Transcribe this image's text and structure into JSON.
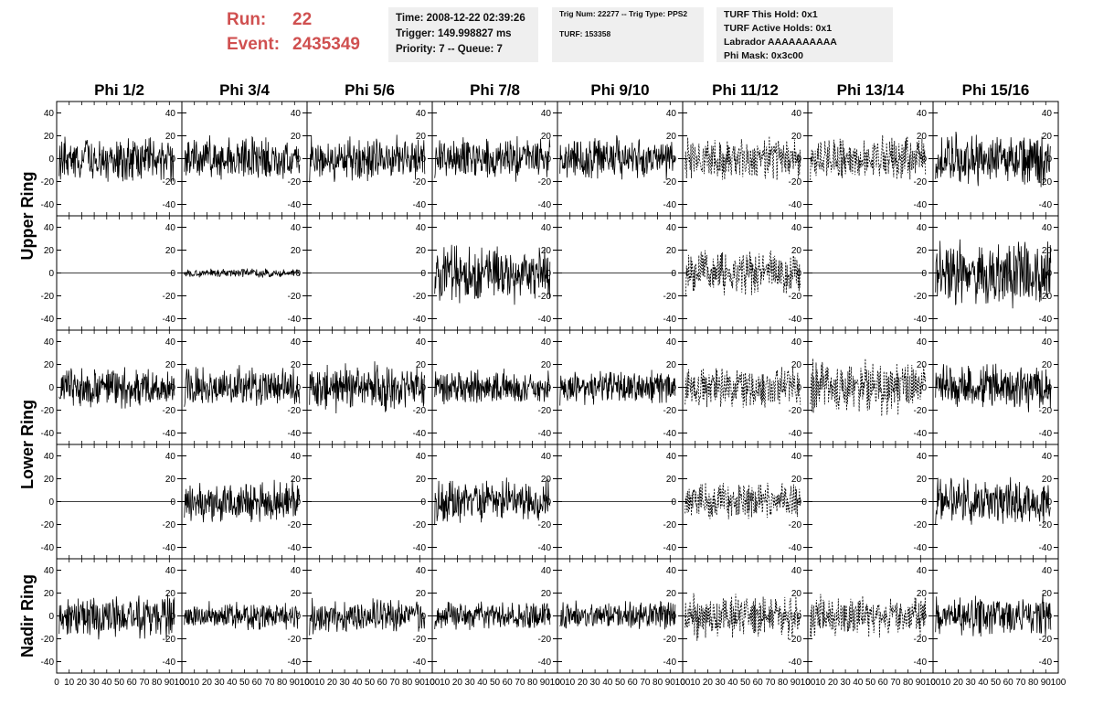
{
  "header": {
    "run_label": "Run:",
    "run_value": "22",
    "event_label": "Event:",
    "event_value": "2435349"
  },
  "info_time": {
    "time": "Time: 2008-12-22 02:39:26",
    "trigger": "Trigger: 149.998827 ms",
    "priority": "Priority: 7 -- Queue: 7"
  },
  "info_trig": {
    "trig": "Trig Num: 22277 -- Trig Type: PPS2",
    "turf": "TURF: 153358"
  },
  "info_turf": {
    "this_hold": "TURF This Hold: 0x1",
    "active_holds": "TURF Active Holds: 0x1",
    "labrador": "Labrador AAAAAAAAAA",
    "phi_mask": "Phi Mask: 0x3c00"
  },
  "chart_data": {
    "type": "line",
    "title": "",
    "columns": [
      "Phi 1/2",
      "Phi 3/4",
      "Phi 5/6",
      "Phi 7/8",
      "Phi 9/10",
      "Phi 11/12",
      "Phi 13/14",
      "Phi 15/16"
    ],
    "row_labels": [
      "Upper Ring",
      "Lower Ring",
      "Nadir Ring"
    ],
    "x_range": [
      0,
      100
    ],
    "x_ticks": [
      0,
      10,
      20,
      30,
      40,
      50,
      60,
      70,
      80,
      90,
      100
    ],
    "y_range": [
      -50,
      50
    ],
    "y_ticks": [
      -40,
      -20,
      0,
      20,
      40
    ],
    "grid": false,
    "masked_style": "dashed",
    "rows": [
      {
        "amplitudes": [
          15,
          15,
          15,
          15,
          15,
          15,
          15,
          18
        ],
        "masked": [
          0,
          0,
          0,
          0,
          0,
          1,
          1,
          0
        ]
      },
      {
        "amplitudes": [
          0,
          3,
          0,
          20,
          0,
          15,
          0,
          22
        ],
        "masked": [
          0,
          0,
          0,
          0,
          0,
          1,
          0,
          0
        ]
      },
      {
        "amplitudes": [
          14,
          14,
          16,
          12,
          12,
          14,
          18,
          16
        ],
        "masked": [
          0,
          0,
          0,
          0,
          0,
          1,
          1,
          0
        ]
      },
      {
        "amplitudes": [
          0,
          14,
          0,
          15,
          0,
          12,
          0,
          16
        ],
        "masked": [
          0,
          0,
          0,
          0,
          0,
          1,
          0,
          0
        ]
      },
      {
        "amplitudes": [
          15,
          10,
          12,
          10,
          10,
          16,
          14,
          14
        ],
        "masked": [
          0,
          0,
          0,
          0,
          0,
          1,
          1,
          0
        ]
      }
    ]
  }
}
